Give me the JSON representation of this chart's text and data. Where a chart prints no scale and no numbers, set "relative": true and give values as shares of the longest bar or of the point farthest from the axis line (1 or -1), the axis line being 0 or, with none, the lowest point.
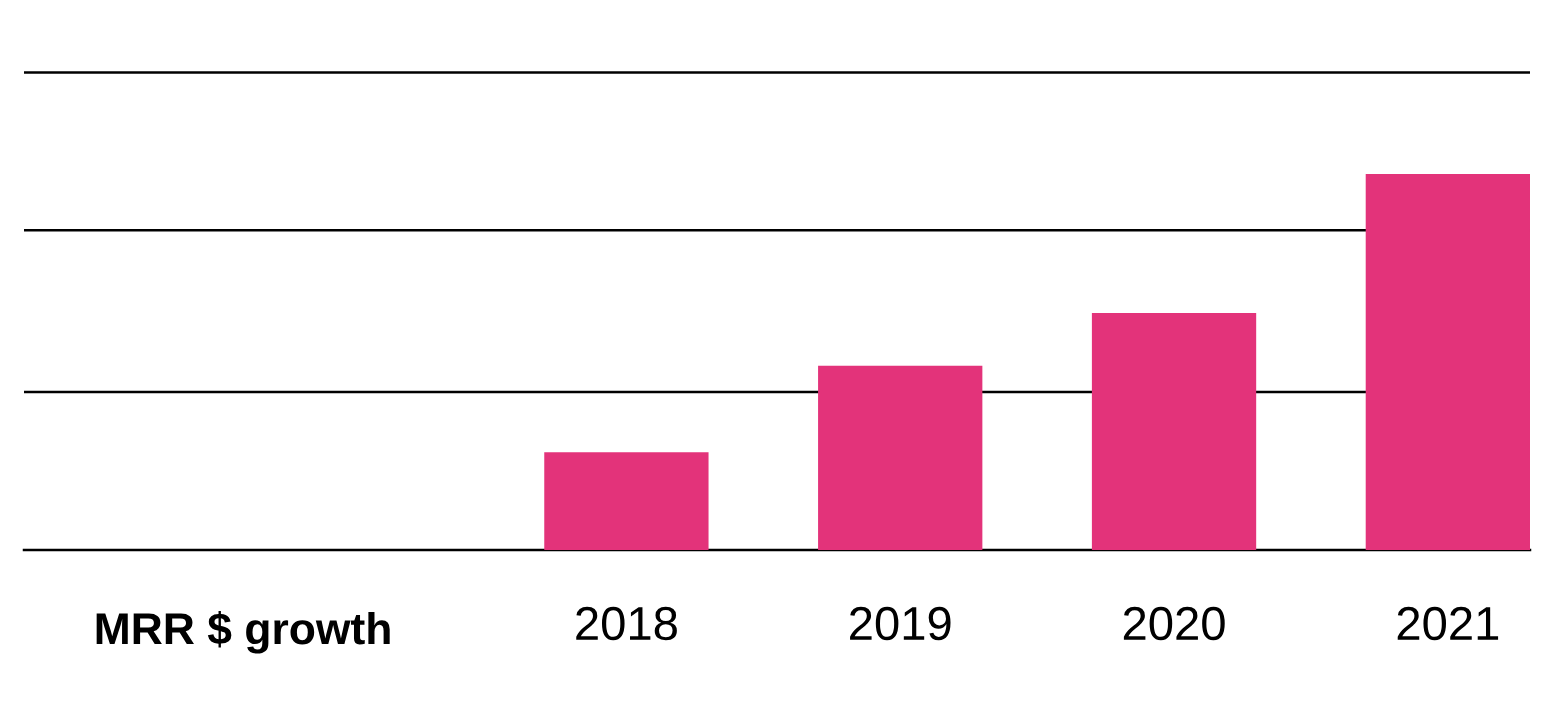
{
  "chart_data": {
    "type": "bar",
    "xlabel": "MRR $ growth",
    "categories": [
      "2018",
      "2019",
      "2020",
      "2021"
    ],
    "relative": true,
    "values": [
      0.26,
      0.49,
      0.63,
      1
    ],
    "color": "#e3337a",
    "ref_lines": [
      {
        "axis": "y",
        "value": 0.42,
        "color": "#000000"
      },
      {
        "axis": "y",
        "value": 0.85,
        "color": "#000000"
      },
      {
        "axis": "y",
        "value": 1.27,
        "color": "#000000"
      }
    ],
    "grid": false,
    "legend": false
  }
}
